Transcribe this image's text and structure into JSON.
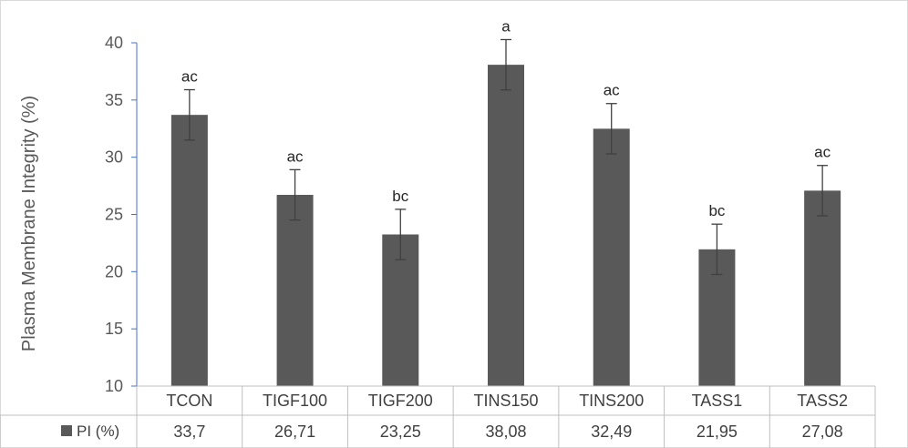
{
  "chart_data": {
    "type": "bar",
    "title": "",
    "ylabel": "Plasma Membrane Integrity (%)",
    "xlabel": "",
    "ylim": [
      10,
      40
    ],
    "yticks": [
      10,
      15,
      20,
      25,
      30,
      35,
      40
    ],
    "grid": false,
    "legend_position": "data-table-left",
    "categories": [
      "TCON",
      "TIGF100",
      "TIGF200",
      "TINS150",
      "TINS200",
      "TASS1",
      "TASS2"
    ],
    "series": [
      {
        "name": "PI (%)",
        "color": "#595959",
        "values": [
          33.7,
          26.71,
          23.25,
          38.08,
          32.49,
          21.95,
          27.08
        ],
        "error": [
          2.2,
          2.2,
          2.2,
          2.2,
          2.2,
          2.2,
          2.2
        ],
        "significance_labels": [
          "ac",
          "ac",
          "bc",
          "a",
          "ac",
          "bc",
          "ac"
        ]
      }
    ],
    "data_table": {
      "row_label": "PI (%)",
      "values": [
        "33,7",
        "26,71",
        "23,25",
        "38,08",
        "32,49",
        "21,95",
        "27,08"
      ]
    },
    "colors": {
      "bar": "#595959",
      "axis": "#4472c4",
      "table_line": "#bfbfbf",
      "error_bar": "#404040"
    }
  }
}
